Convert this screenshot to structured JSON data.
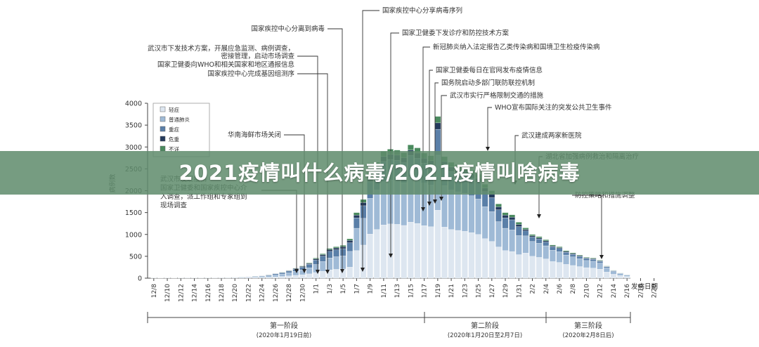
{
  "banner": {
    "title": "2021疫情叫什么病毒/2021疫情叫啥病毒"
  },
  "colors": {
    "light": "#dde6f0",
    "common": "#9fbad6",
    "severe": "#5a7fa8",
    "critical": "#243a5c",
    "unknown": "#4a8a5e",
    "axis": "#444444",
    "text": "#333333",
    "banner_bg": "#608c6c"
  },
  "chart_data": {
    "type": "bar",
    "stacked": true,
    "ylabel": "病例数",
    "xlabel": "发病日期",
    "ylim": [
      0,
      4000
    ],
    "yticks": [
      "0",
      "500",
      "1000",
      "1500",
      "2000",
      "2500",
      "3000",
      "3500",
      "4000"
    ],
    "xticks": [
      "12/8",
      "12/10",
      "12/12",
      "12/14",
      "12/16",
      "12/18",
      "12/20",
      "12/22",
      "12/24",
      "12/26",
      "12/28",
      "12/30",
      "1/1",
      "1/3",
      "1/5",
      "1/7",
      "1/9",
      "1/11",
      "1/13",
      "1/15",
      "1/17",
      "1/19",
      "1/21",
      "1/23",
      "1/25",
      "1/27",
      "1/29",
      "1/31",
      "2/2",
      "2/4",
      "2/6",
      "2/8",
      "2/10",
      "2/12",
      "2/14",
      "2/16",
      "2/18",
      "2/20"
    ],
    "legend": {
      "position": "top-left",
      "items": [
        {
          "name": "轻症",
          "color": "#dde6f0"
        },
        {
          "name": "普通肺炎",
          "color": "#9fbad6"
        },
        {
          "name": "重症",
          "color": "#5a7fa8"
        },
        {
          "name": "危重",
          "color": "#243a5c"
        },
        {
          "name": "不详",
          "color": "#4a8a5e"
        }
      ]
    },
    "totals": [
      10,
      8,
      10,
      8,
      12,
      14,
      10,
      12,
      15,
      14,
      16,
      20,
      22,
      28,
      35,
      45,
      60,
      80,
      110,
      140,
      180,
      230,
      280,
      350,
      460,
      560,
      680,
      720,
      750,
      900,
      1500,
      1800,
      2400,
      2650,
      2900,
      2950,
      2930,
      2870,
      3050,
      2980,
      2860,
      2800,
      3700,
      2780,
      2650,
      2600,
      2550,
      2480,
      2380,
      2150,
      2000,
      1700,
      1500,
      1450,
      1280,
      1150,
      1000,
      950,
      880,
      760,
      720,
      630,
      580,
      530,
      480,
      460,
      410,
      280,
      180,
      120,
      80
    ],
    "stage_labels": [
      {
        "name": "第一阶段",
        "range": "(2020年1月19日前)"
      },
      {
        "name": "第二阶段",
        "range": "(2020年1月20日至2月7日)"
      },
      {
        "name": "第三阶段",
        "range": "(2020年2月8日后)"
      }
    ],
    "annotations": [
      "国家疾控中心分享病毒序列",
      "国家疾控中心分离到病毒",
      "国家卫健委下发诊疗和防控技术方案",
      "新冠肺炎纳入法定报告乙类传染病和国境卫生检疫传染病",
      "武汉市下发技术方案，开展应急监测、病例调查，",
      "密接管理，启动市场调查",
      "国家卫健委向WHO和相关国家和地区通报信息",
      "国家疾控中心完成基因组测序",
      "国家卫健委每日在官网发布疫情信息",
      "国务院启动多部门联防联控机制",
      "武汉市实行严格限制交通的措施",
      "WHO宣布国际关注的突发公共卫生事件",
      "华南海鲜市场关闭",
      "武汉建成两家新医院",
      "湖北省加强病例救治和隔离治疗",
      "防控策略和措施调整",
      "武汉市发现疫情",
      "国家卫健委和国家疾控中心介",
      "入调查，派工作组和专家组到",
      "现场调查"
    ]
  }
}
